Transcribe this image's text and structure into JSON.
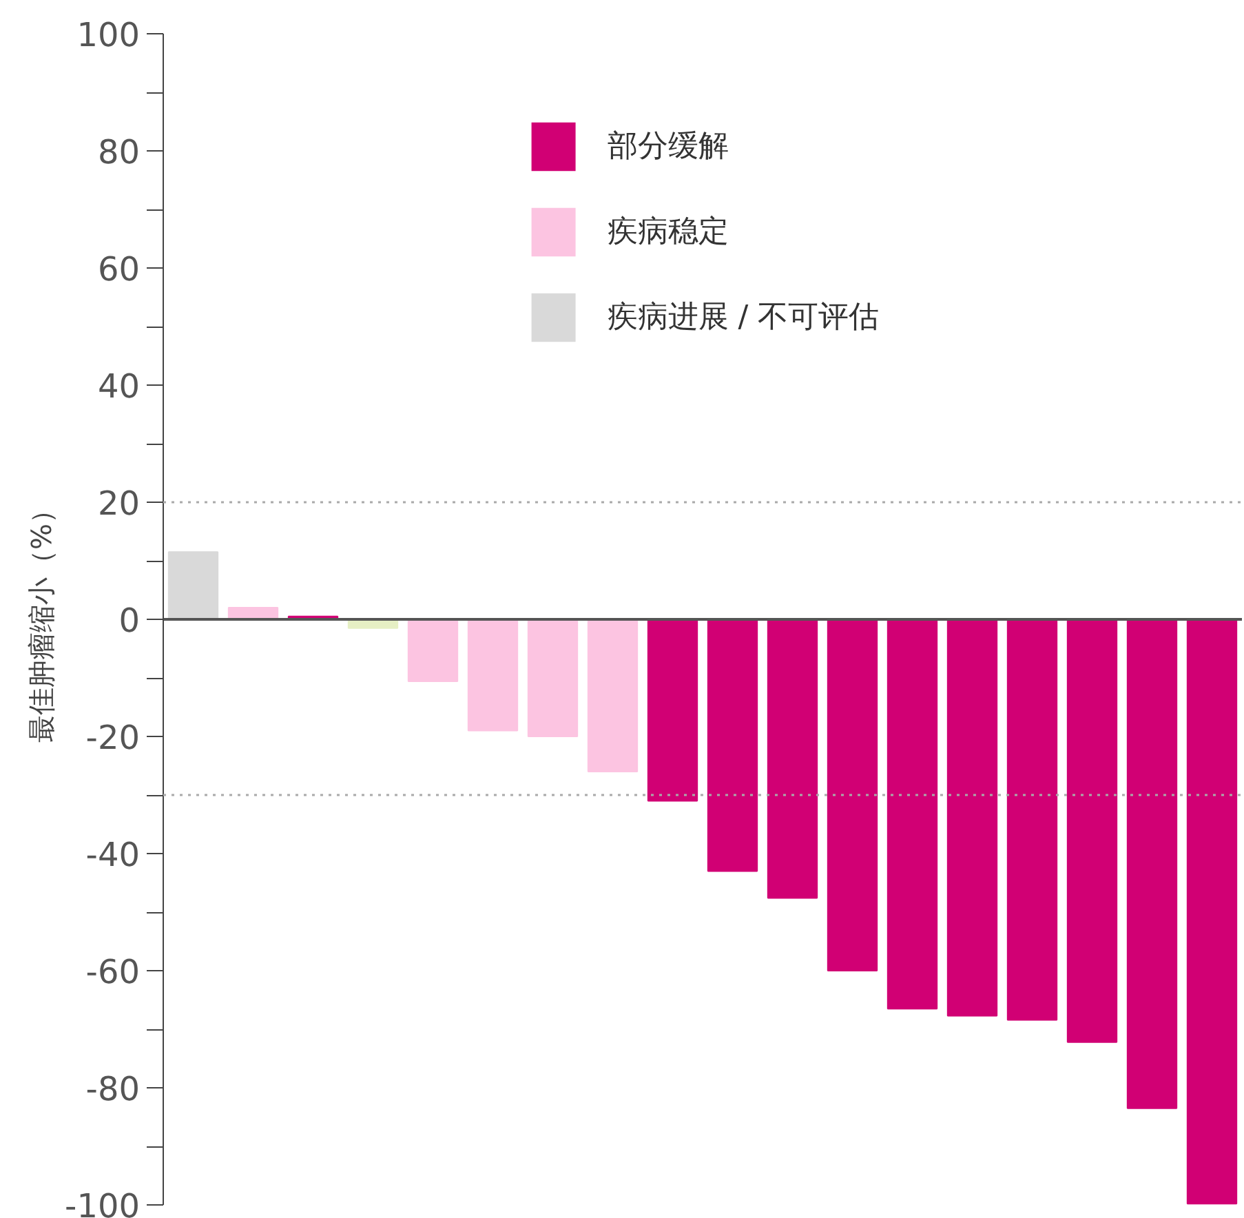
{
  "chart_data": {
    "type": "bar",
    "ylabel": "最佳肿瘤缩小（%）",
    "categories": [
      null,
      null,
      null,
      null,
      null,
      null,
      null,
      null,
      null,
      null,
      null,
      null,
      null,
      null,
      null,
      null,
      null,
      null
    ],
    "series": [
      {
        "name": "部分缓解",
        "color": "#d10074",
        "values": [
          null,
          null,
          0.5,
          null,
          null,
          null,
          null,
          null,
          -31,
          -43,
          -47.6,
          -60,
          -66.5,
          -67.7,
          -68.4,
          -72.2,
          -83.5,
          -99.8
        ]
      },
      {
        "name": "疾病稳定",
        "color": "#fcc4e1",
        "colors": [
          null,
          "#fcc4e1",
          null,
          "#e6efc4",
          "#fcc4e1",
          "#fcc4e1",
          "#fcc4e1",
          "#fcc4e1",
          null,
          null,
          null,
          null,
          null,
          null,
          null,
          null,
          null,
          null
        ],
        "values": [
          null,
          2,
          null,
          -1.5,
          -10.6,
          -19,
          -20,
          -26,
          null,
          null,
          null,
          null,
          null,
          null,
          null,
          null,
          null,
          null
        ]
      },
      {
        "name": "疾病进展 / 不可评估",
        "color": "#d9d9d9",
        "values": [
          11.5,
          null,
          null,
          null,
          null,
          null,
          null,
          null,
          null,
          null,
          null,
          null,
          null,
          null,
          null,
          null,
          null,
          null
        ]
      }
    ],
    "ylim": [
      -100,
      100
    ],
    "yticks": [
      -100,
      {
        "value": -90,
        "label": null
      },
      -80,
      {
        "value": -70,
        "label": null
      },
      -60,
      {
        "value": -50,
        "label": null
      },
      -40,
      {
        "value": -30,
        "label": null
      },
      -20,
      {
        "value": -10,
        "label": null
      },
      0,
      {
        "value": 10,
        "label": null
      },
      20,
      {
        "value": 30,
        "label": null
      },
      40,
      {
        "value": 50,
        "label": null
      },
      60,
      {
        "value": 70,
        "label": null
      },
      80,
      {
        "value": 90,
        "label": null
      },
      100
    ],
    "ref_lines": [
      {
        "axis": "y",
        "value": 20,
        "color": "#aaaaaa",
        "line_style": "dotted"
      },
      {
        "axis": "y",
        "value": -30,
        "color": "#aaaaaa",
        "line_style": "dotted"
      }
    ],
    "tick_labels": "y",
    "grid": false,
    "legend": "top"
  }
}
